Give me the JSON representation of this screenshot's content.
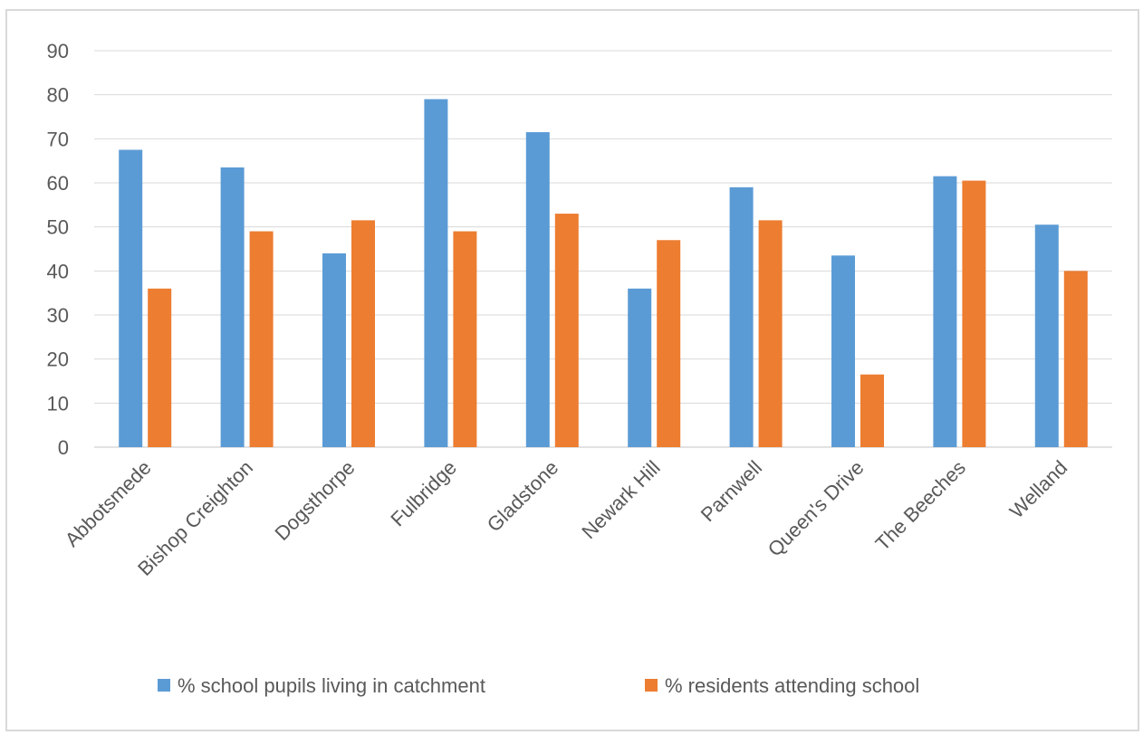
{
  "chart_data": {
    "type": "bar",
    "categories": [
      "Abbotsmede",
      "Bishop Creighton",
      "Dogsthorpe",
      "Fulbridge",
      "Gladstone",
      "Newark Hill",
      "Parnwell",
      "Queen's Drive",
      "The Beeches",
      "Welland"
    ],
    "series": [
      {
        "name": "% school pupils living in catchment",
        "color": "#5b9bd5",
        "values": [
          67.5,
          63.5,
          44,
          79,
          71.5,
          36,
          59,
          43.5,
          61.5,
          50.5
        ]
      },
      {
        "name": "% residents attending school",
        "color": "#ed7d31",
        "values": [
          36,
          49,
          51.5,
          49,
          53,
          47,
          51.5,
          16.5,
          60.5,
          40
        ]
      }
    ],
    "title": "",
    "xlabel": "",
    "ylabel": "",
    "ylim": [
      0,
      90
    ],
    "yticks": [
      "0",
      "10",
      "20",
      "30",
      "40",
      "50",
      "60",
      "70",
      "80",
      "90"
    ],
    "grid": true,
    "legend_position": "bottom",
    "gridline_color": "#d9d9d9"
  }
}
